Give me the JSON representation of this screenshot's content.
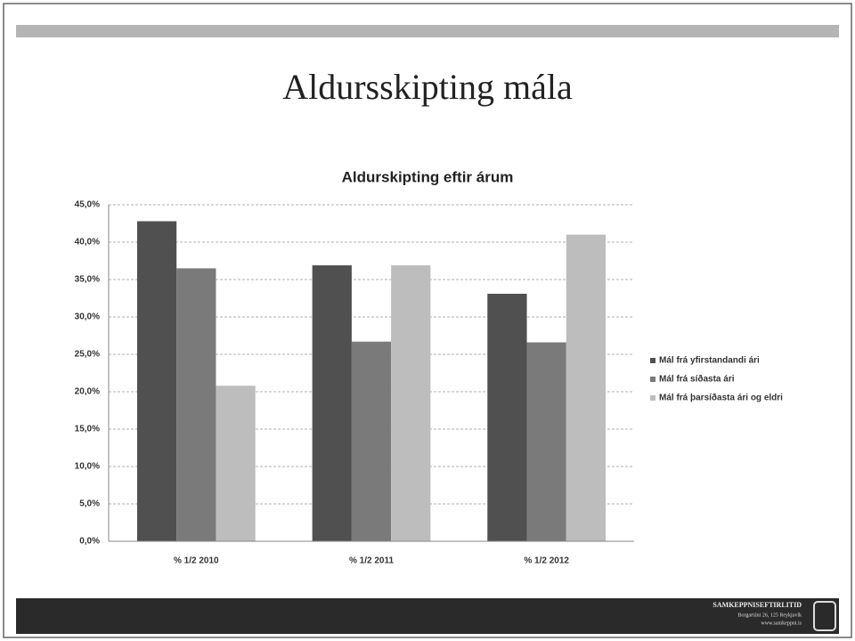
{
  "slide_title": "Aldursskipting mála",
  "chart_data": {
    "type": "bar",
    "title": "Aldurskipting eftir árum",
    "categories": [
      "% 1/2 2010",
      "% 1/2 2011",
      "% 1/2 2012"
    ],
    "series": [
      {
        "name": "Mál frá yfirstandandi ári",
        "color": "#505050",
        "values": [
          42.8,
          36.9,
          33.1
        ]
      },
      {
        "name": "Mál frá síðasta ári",
        "color": "#7a7a7a",
        "values": [
          36.5,
          26.7,
          26.6
        ]
      },
      {
        "name": "Mál frá þarsíðasta ári og eldri",
        "color": "#bdbdbd",
        "values": [
          20.8,
          36.9,
          41.0
        ]
      }
    ],
    "ylim": [
      0,
      45
    ],
    "yticks": [
      {
        "value": 0,
        "label": "0,0%"
      },
      {
        "value": 5,
        "label": "5,0%"
      },
      {
        "value": 10,
        "label": "10,0%"
      },
      {
        "value": 15,
        "label": "15,0%"
      },
      {
        "value": 20,
        "label": "20,0%"
      },
      {
        "value": 25,
        "label": "25,0%"
      },
      {
        "value": 30,
        "label": "30,0%"
      },
      {
        "value": 35,
        "label": "35,0%"
      },
      {
        "value": 40,
        "label": "40,0%"
      },
      {
        "value": 45,
        "label": "45,0%"
      }
    ],
    "grid": true,
    "legend": "right"
  },
  "footer": {
    "name": "SAMKEPPNISEFTIRLITID",
    "address": "Borgartúni 26, 125 Reykjavík",
    "url": "www.samkeppni.is"
  }
}
